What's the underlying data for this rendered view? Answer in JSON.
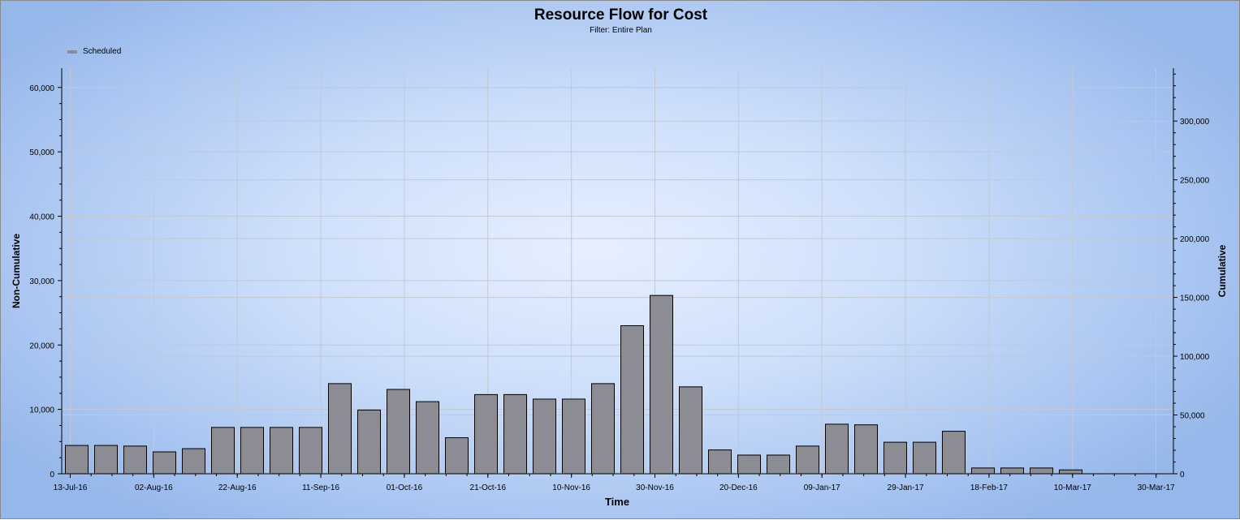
{
  "chart_data": {
    "type": "bar",
    "title": "Resource Flow for Cost",
    "subtitle": "Filter: Entire Plan",
    "xlabel": "Time",
    "ylabel": "Non-Cumulative",
    "y2label": "Cumulative",
    "ylim": [
      0,
      63000
    ],
    "y2lim": [
      0,
      345000
    ],
    "yticks": [
      0,
      10000,
      20000,
      30000,
      40000,
      50000,
      60000
    ],
    "yticklabels": [
      "0",
      "10,000",
      "20,000",
      "30,000",
      "40,000",
      "50,000",
      "60,000"
    ],
    "y2ticks": [
      0,
      50000,
      100000,
      150000,
      200000,
      250000,
      300000
    ],
    "y2ticklabels": [
      "0",
      "50,000",
      "100,000",
      "150,000",
      "200,000",
      "250,000",
      "300,000"
    ],
    "xticks": [
      "13-Jul-16",
      "02-Aug-16",
      "22-Aug-16",
      "11-Sep-16",
      "01-Oct-16",
      "21-Oct-16",
      "10-Nov-16",
      "30-Nov-16",
      "20-Dec-16",
      "09-Jan-17",
      "29-Jan-17",
      "18-Feb-17",
      "10-Mar-17",
      "30-Mar-17"
    ],
    "legend": {
      "position": "top-left",
      "entries": [
        "Scheduled"
      ]
    },
    "grid": true,
    "bar_color": "#8c8c94",
    "series": [
      {
        "name": "Scheduled",
        "values": [
          4400,
          4400,
          4300,
          3400,
          3900,
          7200,
          7200,
          7200,
          7200,
          14000,
          9900,
          13100,
          11200,
          5600,
          12300,
          12300,
          11600,
          11600,
          14000,
          23000,
          27700,
          13500,
          3700,
          2900,
          2900,
          4300,
          7700,
          7600,
          4900,
          4900,
          6600,
          900,
          900,
          900,
          600
        ]
      }
    ]
  }
}
